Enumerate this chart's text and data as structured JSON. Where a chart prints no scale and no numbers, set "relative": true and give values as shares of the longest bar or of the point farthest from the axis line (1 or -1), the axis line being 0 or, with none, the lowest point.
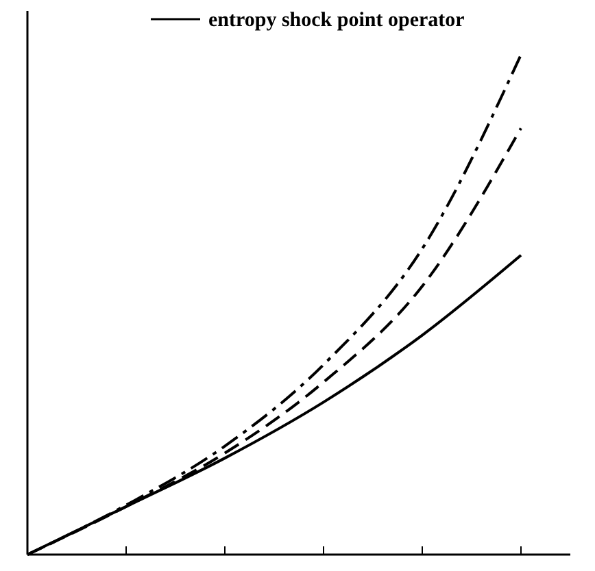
{
  "chart_data": {
    "type": "line",
    "relative": true,
    "categories": [
      null,
      null,
      null,
      null,
      null,
      null
    ],
    "legend": "top",
    "marker": "none",
    "series": [
      {
        "name": "entropy shock point operator",
        "color": "#000000",
        "line_style": "solid",
        "values": [
          0,
          0.096,
          0.193,
          0.305,
          0.439,
          0.599
        ]
      },
      {
        "color": "#000000",
        "line_style": "dashed",
        "values": [
          0,
          0.096,
          0.203,
          0.345,
          0.537,
          0.853
        ]
      },
      {
        "color": "#000000",
        "line_style": "dashdot",
        "values": [
          0,
          0.099,
          0.217,
          0.38,
          0.612,
          1
        ]
      }
    ]
  }
}
